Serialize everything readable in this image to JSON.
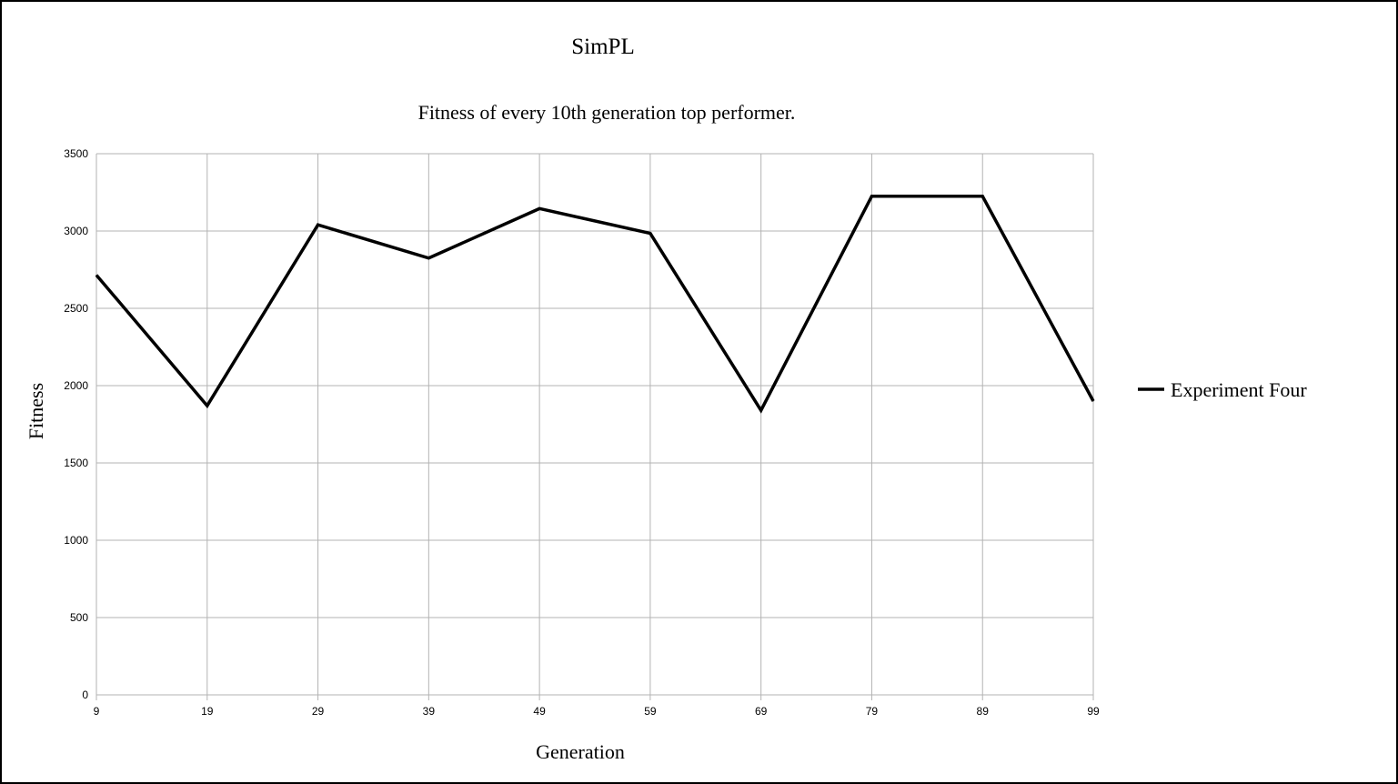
{
  "chart_data": {
    "type": "line",
    "title": "SimPL",
    "subtitle": "Fitness of every 10th generation top performer.",
    "xlabel": "Generation",
    "ylabel": "Fitness",
    "categories": [
      "9",
      "19",
      "29",
      "39",
      "49",
      "59",
      "69",
      "79",
      "89",
      "99"
    ],
    "yticks": [
      "0",
      "500",
      "1000",
      "1500",
      "2000",
      "2500",
      "3000",
      "3500"
    ],
    "ylim": [
      0,
      3500
    ],
    "grid": true,
    "legend_position": "right",
    "series": [
      {
        "name": "Experiment Four",
        "color": "#000000",
        "values": [
          2715,
          1870,
          3040,
          2825,
          3145,
          2985,
          1840,
          3225,
          3225,
          1900
        ]
      }
    ]
  }
}
